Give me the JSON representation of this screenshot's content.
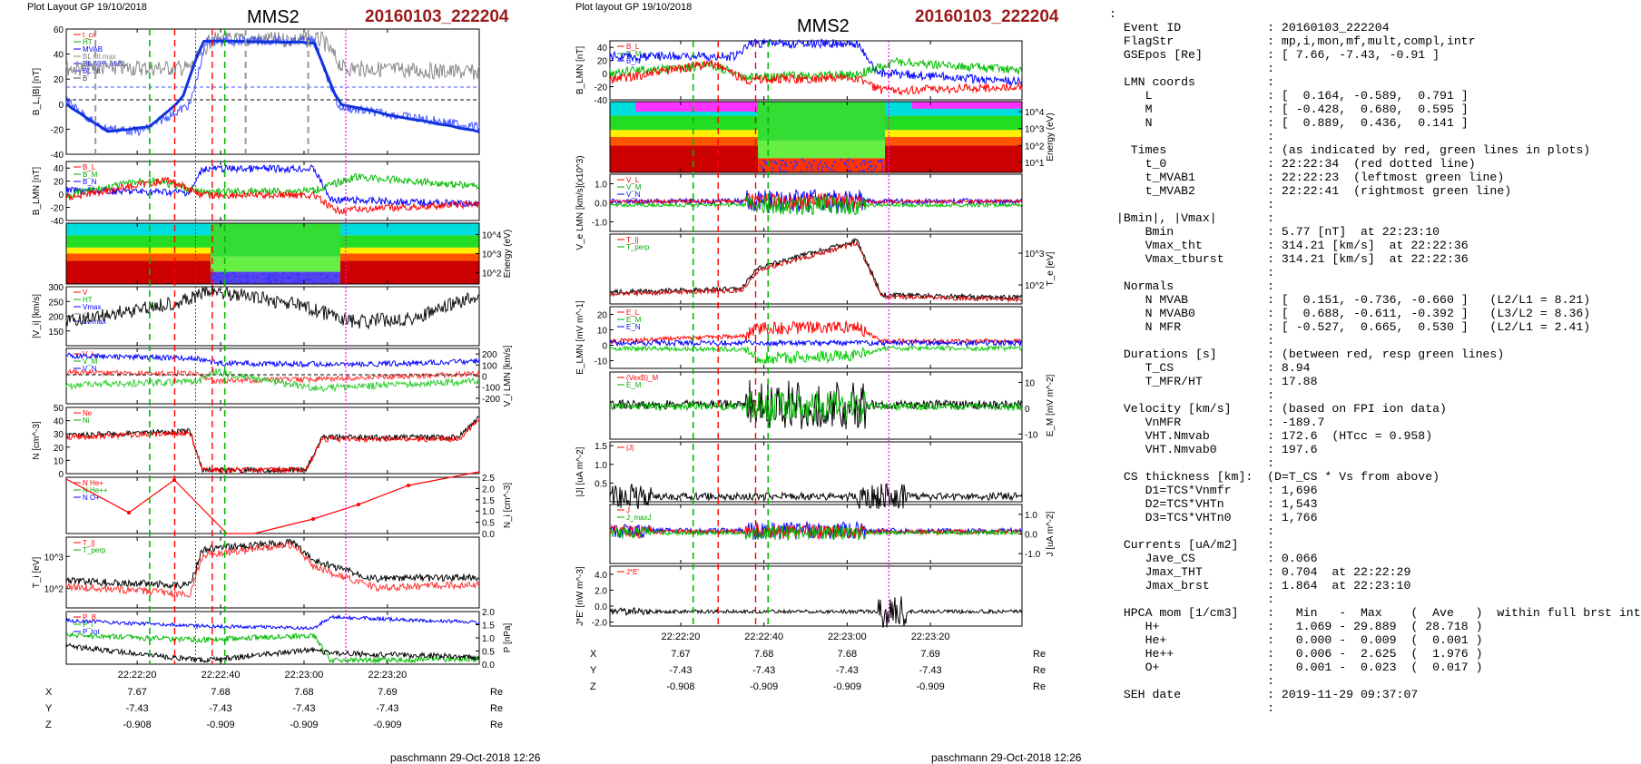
{
  "header": {
    "left_layout": "Plot Layout GP 19/10/2018",
    "right_layout": "Plot layout GP 19/10/2018",
    "spacecraft": "MMS2",
    "event": "20160103_222204"
  },
  "footer": {
    "left": "paschmann 29-Oct-2018 12:26",
    "right": "paschmann 29-Oct-2018 12:26"
  },
  "colors": {
    "red": "#ff0000",
    "green": "#00cc00",
    "blue": "#0000ff",
    "magenta": "#ff00ff",
    "gray": "#888888",
    "event_red": "#9b1b1b"
  },
  "time_ticks": [
    "22:22:20",
    "22:22:40",
    "22:23:00",
    "22:23:20"
  ],
  "orbit": {
    "labels": [
      "X",
      "Y",
      "Z"
    ],
    "unit": "Re",
    "X": [
      "7.67",
      "7.68",
      "7.68",
      "7.69"
    ],
    "Y": [
      "-7.43",
      "-7.43",
      "-7.43",
      "-7.43"
    ],
    "Z": [
      "-0.908",
      "-0.909",
      "-0.909",
      "-0.909"
    ]
  },
  "chart_data": [
    {
      "type": "line",
      "title": "MMS2",
      "subtitle": "20160103_222204",
      "column": "left",
      "panels": [
        {
          "ylabel": "B_L,|B| [nT]",
          "ylim": [
            -40,
            60
          ],
          "yticks": [
            60,
            40,
            20,
            0,
            -20,
            -40
          ],
          "legend": [
            "t_cs",
            "HT",
            "MVAB",
            "BL filt max",
            "BL 50% of BL",
            "BL filt",
            "B"
          ]
        },
        {
          "ylabel": "B_LMN [nT]",
          "ylim": [
            -40,
            50
          ],
          "yticks": [
            40,
            20,
            0,
            -20,
            -40
          ],
          "legend": [
            "B_L",
            "B_M",
            "B_N"
          ]
        },
        {
          "ylabel": "Energy (eV)",
          "type": "heatmap",
          "yticks": [
            "10^4",
            "10^3",
            "10^2"
          ]
        },
        {
          "ylabel": "|V_i| [km/s]",
          "ylim": [
            100,
            300
          ],
          "yticks": [
            300,
            250,
            200,
            150
          ],
          "legend": [
            "V",
            "HT",
            "Vmax",
            "cs",
            "dv/max"
          ]
        },
        {
          "ylabel": "V_i LMN [km/s]",
          "ylim": [
            -250,
            250
          ],
          "yticks": [
            200,
            100,
            0,
            -100,
            -200
          ],
          "legend": [
            "V_L",
            "V_M",
            "V_N"
          ]
        },
        {
          "ylabel": "N [cm^-3]",
          "ylim": [
            0,
            50
          ],
          "yticks": [
            50,
            40,
            30,
            20,
            10,
            0
          ],
          "legend": [
            "Ne",
            "Ni"
          ]
        },
        {
          "ylabel": "N_i [cm^-3]",
          "ylim": [
            0,
            2.5
          ],
          "yticks": [
            2.5,
            2.0,
            1.5,
            1.0,
            0.5,
            0.0
          ],
          "legend": [
            "N He+",
            "N He++",
            "N O+"
          ]
        },
        {
          "ylabel": "T_i [eV]",
          "scale": "log",
          "yticks": [
            "10^3",
            "10^2"
          ],
          "legend": [
            "T_||",
            "T_perp"
          ]
        },
        {
          "ylabel": "P [nPa]",
          "ylim": [
            0,
            2.0
          ],
          "yticks": [
            2.0,
            1.5,
            1.0,
            0.5,
            0.0
          ],
          "legend": [
            "P_B",
            "P_i",
            "P_tot"
          ]
        }
      ],
      "markers": {
        "green_dashed": [
          "22:22:23",
          "22:22:41"
        ],
        "red_dashed": [
          "22:22:29",
          "22:22:38"
        ],
        "red_dotted": [
          "22:22:34"
        ],
        "gray_dashed": [
          "22:22:10",
          "22:22:46",
          "22:23:01"
        ],
        "magenta_dotted": [
          "22:23:10"
        ]
      }
    },
    {
      "type": "line",
      "title": "MMS2",
      "subtitle": "20160103_222204",
      "column": "right",
      "panels": [
        {
          "ylabel": "B_LMN [nT]",
          "ylim": [
            -40,
            50
          ],
          "yticks": [
            40,
            20,
            0,
            -20,
            -40
          ],
          "legend": [
            "B_L",
            "B_M",
            "B_N"
          ]
        },
        {
          "ylabel": "Energy (eV)",
          "type": "heatmap",
          "yticks": [
            "10^4",
            "10^3",
            "10^2",
            "10^1"
          ]
        },
        {
          "ylabel": "V_e LMN [km/s](x10^3)",
          "ylim": [
            -1.5,
            1.5
          ],
          "yticks": [
            1,
            0,
            -1
          ],
          "legend": [
            "V_L",
            "V_M",
            "V_N"
          ]
        },
        {
          "ylabel": "T_e [eV]",
          "scale": "log",
          "yticks": [
            "10^3",
            "10^2"
          ],
          "legend": [
            "T_||",
            "T_perp"
          ]
        },
        {
          "ylabel": "E_LMN [mV m^-1]",
          "ylim": [
            -15,
            25
          ],
          "yticks": [
            20,
            10,
            0,
            -10
          ],
          "legend": [
            "E_L",
            "E_M",
            "E_N"
          ]
        },
        {
          "ylabel": "E_M [mV m^-2]",
          "ylim": [
            -12,
            14
          ],
          "yticks": [
            10,
            0,
            -10
          ],
          "legend": [
            "(VexB)_M",
            "E_M"
          ]
        },
        {
          "ylabel": "|J| [uA m^-2]",
          "ylim": [
            0,
            1.6
          ],
          "yticks": [
            1.5,
            1.0,
            0.5
          ],
          "legend": [
            "|J|"
          ]
        },
        {
          "ylabel": "J [uA m^-2]",
          "ylim": [
            -1.5,
            1.5
          ],
          "yticks": [
            1,
            0,
            -1
          ],
          "legend": [
            "J",
            "J_maxJ"
          ]
        },
        {
          "ylabel": "J*E' [nW m^-3]",
          "ylim": [
            -2.5,
            5
          ],
          "yticks": [
            4,
            2,
            0,
            -2
          ],
          "legend": [
            "J*E'"
          ]
        }
      ],
      "markers": {
        "green_dashed": [
          "22:22:23",
          "22:22:41"
        ],
        "red_dashed": [
          "22:22:29",
          "22:22:38"
        ],
        "magenta_dotted": [
          "22:23:10"
        ]
      }
    }
  ],
  "info_lines": [
    ":",
    "  Event ID            : 20160103_222204",
    "  FlagStr             : mp,i,mon,mf,mult,compl,intr",
    "  GSEpos [Re]         : [ 7.66, -7.43, -0.91 ]",
    "                      :",
    "  LMN coords          :",
    "     L                : [  0.164, -0.589,  0.791 ]",
    "     M                : [ -0.428,  0.680,  0.595 ]",
    "     N                : [  0.889,  0.436,  0.141 ]",
    "                      :",
    "   Times              : (as indicated by red, green lines in plots)",
    "     t_0              : 22:22:34  (red dotted line)",
    "     t_MVAB1          : 22:22:23  (leftmost green line)",
    "     t_MVAB2          : 22:22:41  (rightmost green line)",
    "                      :",
    " |Bmin|, |Vmax|       :",
    "     Bmin             : 5.77 [nT]  at 22:23:10",
    "     Vmax_tht         : 314.21 [km/s]  at 22:22:36",
    "     Vmax_tburst      : 314.21 [km/s]  at 22:22:36",
    "                      :",
    "  Normals             :",
    "     N MVAB           : [  0.151, -0.736, -0.660 ]   (L2/L1 = 8.21)",
    "     N MVAB0          : [  0.688, -0.611, -0.392 ]   (L3/L2 = 8.36)",
    "     N MFR            : [ -0.527,  0.665,  0.530 ]   (L2/L1 = 2.41)",
    "                      :",
    "  Durations [s]       : (between red, resp green lines)",
    "     T_CS             : 8.94",
    "     T_MFR/HT         : 17.88",
    "                      :",
    "  Velocity [km/s]     : (based on FPI ion data)",
    "     VnMFR            : -189.7",
    "     VHT.Nmvab        : 172.6  (HTcc = 0.958)",
    "     VHT.Nmvab0       : 197.6",
    "                      :",
    "  CS thickness [km]:  (D=T_CS * Vs from above)",
    "     D1=TCS*Vnmfr     : 1,696",
    "     D2=TCS*VHTn      : 1,543",
    "     D3=TCS*VHTn0     : 1,766",
    "                      :",
    "  Currents [uA/m2]    :",
    "     Jave_CS          : 0.066",
    "     Jmax_THT         : 0.704  at 22:22:29",
    "     Jmax_brst        : 1.864  at 22:23:10",
    "                      :",
    "  HPCA mom [1/cm3]    :   Min   -  Max    (  Ave   )  within full brst int",
    "     H+               :   1.069 - 29.889  ( 28.718 )",
    "     He+              :   0.000 -  0.009  (  0.001 )",
    "     He++             :   0.006 -  2.625  (  1.976 )",
    "     O+               :   0.001 -  0.023  (  0.017 )",
    "                      :",
    "  SEH date            : 2019-11-29 09:37:07",
    "                      :"
  ]
}
